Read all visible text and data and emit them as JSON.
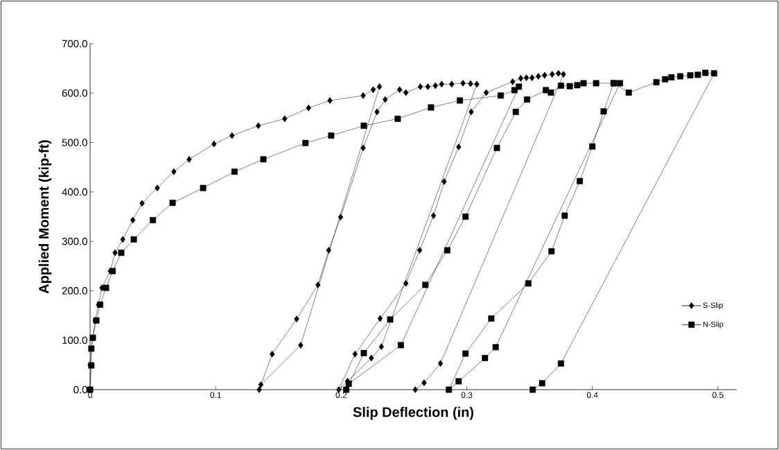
{
  "chart_data": {
    "type": "line",
    "xlabel": "Slip Deflection (in)",
    "ylabel": "Applied Moment (kip-ft)",
    "xlim": [
      0,
      0.515
    ],
    "ylim": [
      0,
      700
    ],
    "xticks": [
      0,
      0.1,
      0.2,
      0.3,
      0.4,
      0.5
    ],
    "yticks": [
      {
        "value": 0,
        "label": "0.0"
      },
      {
        "value": 100,
        "label": "100.0"
      },
      {
        "value": 200,
        "label": "200.0"
      },
      {
        "value": 300,
        "label": "300.0"
      },
      {
        "value": 400,
        "label": "400.0"
      },
      {
        "value": 500,
        "label": "500.0"
      },
      {
        "value": 600,
        "label": "600.0"
      },
      {
        "value": 700,
        "label": "700.0"
      }
    ],
    "grid": false,
    "legend": "bottom right",
    "line_style": "solid",
    "series": [
      {
        "name": "S-Slip",
        "color": "#000000",
        "marker": "diamond",
        "x": [
          0,
          0,
          0.002,
          0.004,
          0.0066,
          0.0094,
          0.016,
          0.0199,
          0.026,
          0.034,
          0.0414,
          0.0535,
          0.0667,
          0.0789,
          0.0987,
          0.113,
          0.134,
          0.155,
          0.174,
          0.191,
          0.2175,
          0.2255,
          0.2305,
          0.1677,
          0.136,
          0.1347,
          0.145,
          0.1645,
          0.1815,
          0.19,
          0.1995,
          0.2175,
          0.2285,
          0.235,
          0.2465,
          0.2515,
          0.263,
          0.269,
          0.275,
          0.28,
          0.288,
          0.297,
          0.303,
          0.308,
          0.232,
          0.224,
          0.205,
          0.198,
          0.211,
          0.231,
          0.2515,
          0.2625,
          0.2735,
          0.282,
          0.2935,
          0.3035,
          0.3155,
          0.3365,
          0.343,
          0.3475,
          0.352,
          0.357,
          0.362,
          0.368,
          0.373,
          0.377,
          0.279,
          0.266,
          0.259
        ],
        "values": [
          0,
          50,
          105,
          140,
          172,
          206,
          240,
          277,
          304,
          343,
          377,
          408,
          441,
          466,
          497,
          514,
          534,
          548,
          570,
          585,
          595,
          607,
          613,
          90,
          10,
          0,
          72,
          143,
          212,
          282,
          349,
          489,
          562,
          587,
          607,
          601,
          613,
          613,
          615,
          618,
          618,
          620,
          619,
          618,
          87,
          64,
          17,
          0,
          72,
          144,
          215,
          282,
          352,
          421,
          491,
          562,
          601,
          623,
          630,
          631,
          631,
          634,
          636,
          638,
          640,
          638,
          53,
          14,
          0
        ]
      },
      {
        "name": "N-Slip",
        "color": "#000000",
        "marker": "square",
        "x": [
          0,
          0.001,
          0.001,
          0.0022,
          0.005,
          0.008,
          0.0127,
          0.018,
          0.0248,
          0.0348,
          0.05,
          0.0657,
          0.09,
          0.115,
          0.138,
          0.1715,
          0.192,
          0.218,
          0.245,
          0.2715,
          0.2945,
          0.327,
          0.338,
          0.3415,
          0.2475,
          0.206,
          0.204,
          0.218,
          0.239,
          0.267,
          0.2845,
          0.299,
          0.324,
          0.339,
          0.348,
          0.363,
          0.367,
          0.375,
          0.382,
          0.388,
          0.393,
          0.403,
          0.417,
          0.422,
          0.323,
          0.3145,
          0.2935,
          0.2857,
          0.299,
          0.3195,
          0.349,
          0.3675,
          0.378,
          0.39,
          0.4,
          0.409,
          0.417,
          0.429,
          0.451,
          0.458,
          0.463,
          0.47,
          0.478,
          0.484,
          0.49,
          0.497,
          0.375,
          0.36,
          0.3525
        ],
        "values": [
          0,
          49,
          83,
          105,
          140,
          172,
          206,
          240,
          277,
          304,
          343,
          378,
          408,
          441,
          466,
          499,
          514,
          534,
          548,
          571,
          585,
          595,
          606,
          613,
          90,
          12,
          0,
          74,
          142,
          212,
          282,
          350,
          489,
          562,
          587,
          606,
          601,
          615,
          614,
          616,
          620,
          620,
          620,
          620,
          86,
          64,
          17,
          0,
          73,
          144,
          215,
          280,
          352,
          422,
          492,
          563,
          620,
          601,
          622,
          628,
          632,
          634,
          636,
          637,
          641,
          640,
          53,
          13,
          0
        ]
      }
    ]
  }
}
